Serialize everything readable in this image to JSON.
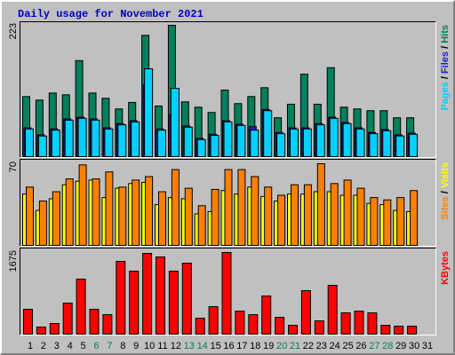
{
  "title": "Daily usage for November 2021",
  "chart_data": [
    {
      "type": "bar",
      "ylim": [
        0,
        223
      ],
      "yticks": [
        223
      ],
      "legend_separator": "/",
      "series": [
        {
          "name": "Hits",
          "color": "#00805c",
          "values": [
            102,
            96,
            108,
            105,
            163,
            108,
            99,
            81,
            92,
            206,
            86,
            223,
            93,
            84,
            75,
            113,
            90,
            102,
            117,
            66,
            89,
            140,
            89,
            151,
            84,
            81,
            78,
            78,
            66,
            66,
            null
          ]
        },
        {
          "name": "Files",
          "color": "#2020c8",
          "values": [
            49,
            37,
            47,
            64,
            67,
            64,
            49,
            56,
            61,
            122,
            47,
            72,
            52,
            31,
            38,
            61,
            55,
            51,
            80,
            41,
            49,
            49,
            56,
            67,
            58,
            49,
            41,
            46,
            37,
            40,
            null
          ]
        },
        {
          "name": "Pages",
          "color": "#00d0ff",
          "values": [
            47,
            35,
            45,
            62,
            65,
            62,
            47,
            54,
            59,
            149,
            45,
            116,
            50,
            29,
            36,
            59,
            53,
            45,
            78,
            39,
            47,
            47,
            54,
            65,
            56,
            47,
            39,
            44,
            35,
            38,
            null
          ]
        }
      ]
    },
    {
      "type": "bar",
      "ylim": [
        0,
        70
      ],
      "yticks": [
        70
      ],
      "legend_separator": "/",
      "series": [
        {
          "name": "Visits",
          "color": "#ffff00",
          "values": [
            44,
            30,
            40,
            52,
            55,
            56,
            41,
            49,
            53,
            54,
            35,
            41,
            40,
            27,
            29,
            47,
            44,
            50,
            42,
            38,
            44,
            44,
            46,
            46,
            43,
            43,
            36,
            35,
            30,
            29,
            null
          ]
        },
        {
          "name": "Sites",
          "color": "#ff8000",
          "values": [
            50,
            38,
            46,
            57,
            69,
            57,
            63,
            50,
            56,
            59,
            46,
            65,
            49,
            34,
            48,
            65,
            65,
            59,
            50,
            43,
            52,
            52,
            70,
            53,
            56,
            49,
            41,
            39,
            41,
            47,
            null
          ]
        }
      ]
    },
    {
      "type": "bar",
      "ylim": [
        0,
        1675
      ],
      "yticks": [
        1675
      ],
      "series": [
        {
          "name": "KBytes",
          "color": "#ff0000",
          "values": [
            510,
            146,
            218,
            637,
            1129,
            510,
            400,
            1493,
            1293,
            1657,
            1584,
            1293,
            1456,
            328,
            564,
            1675,
            473,
            400,
            783,
            346,
            182,
            892,
            273,
            1001,
            437,
            473,
            437,
            182,
            164,
            164,
            null
          ]
        }
      ],
      "categories": [
        "1",
        "2",
        "3",
        "4",
        "5",
        "6",
        "7",
        "8",
        "9",
        "10",
        "11",
        "12",
        "13",
        "14",
        "15",
        "16",
        "17",
        "18",
        "19",
        "20",
        "21",
        "22",
        "23",
        "24",
        "25",
        "26",
        "27",
        "28",
        "29",
        "30",
        "31"
      ],
      "category_colors": [
        "#000000",
        "#000000",
        "#000000",
        "#000000",
        "#000000",
        "#00805c",
        "#00805c",
        "#000000",
        "#000000",
        "#000000",
        "#000000",
        "#000000",
        "#00805c",
        "#00805c",
        "#000000",
        "#000000",
        "#000000",
        "#000000",
        "#000000",
        "#00805c",
        "#00805c",
        "#000000",
        "#000000",
        "#000000",
        "#000000",
        "#000000",
        "#00805c",
        "#00805c",
        "#000000",
        "#000000",
        "#000000"
      ]
    }
  ]
}
